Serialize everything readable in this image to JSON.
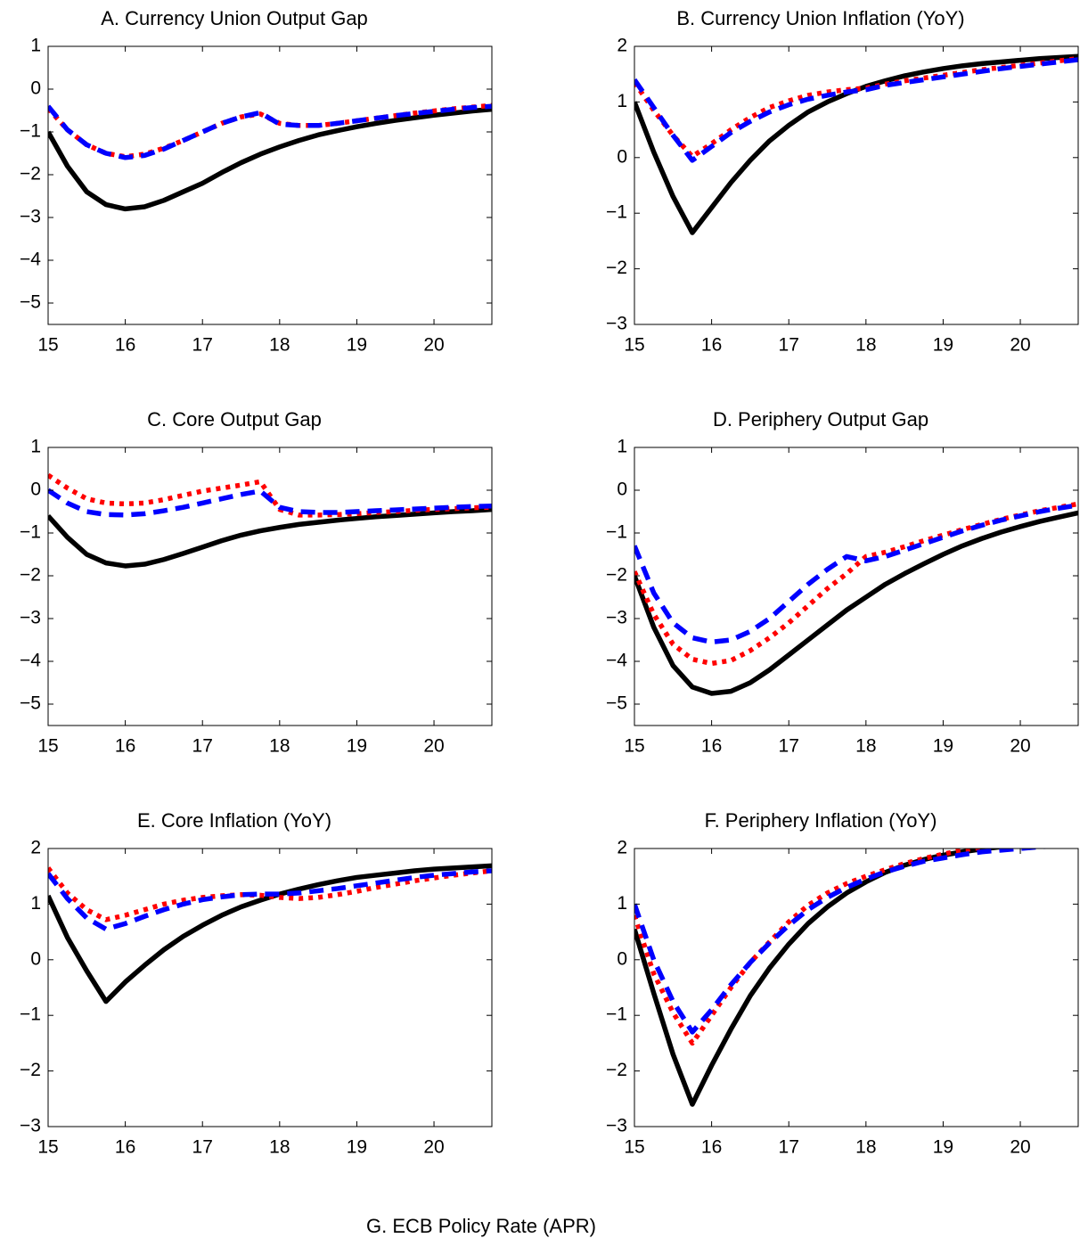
{
  "chart_data": [
    {
      "type": "line",
      "title": "A. Currency Union Output Gap",
      "x": [
        15,
        15.25,
        15.5,
        15.75,
        16,
        16.25,
        16.5,
        16.75,
        17,
        17.25,
        17.5,
        17.75,
        18,
        18.25,
        18.5,
        18.75,
        19,
        19.25,
        19.5,
        19.75,
        20,
        20.25,
        20.5,
        20.75
      ],
      "xlim": [
        15,
        20.75
      ],
      "xticks": [
        15,
        16,
        17,
        18,
        19,
        20
      ],
      "ylim": [
        -5.5,
        1
      ],
      "yticks": [
        {
          "value": -5,
          "label": "−5"
        },
        {
          "value": -4,
          "label": "−4"
        },
        {
          "value": -3,
          "label": "−3"
        },
        {
          "value": -2,
          "label": "−2"
        },
        {
          "value": -1,
          "label": "−1"
        },
        0,
        1
      ],
      "series": [
        {
          "color": "#000000",
          "style": "solid",
          "values": [
            -1.0,
            -1.8,
            -2.4,
            -2.7,
            -2.8,
            -2.75,
            -2.6,
            -2.4,
            -2.2,
            -1.95,
            -1.72,
            -1.52,
            -1.35,
            -1.2,
            -1.07,
            -0.97,
            -0.88,
            -0.8,
            -0.73,
            -0.67,
            -0.61,
            -0.56,
            -0.51,
            -0.47
          ]
        },
        {
          "color": "#ff0000",
          "style": "dotted",
          "values": [
            -0.45,
            -0.95,
            -1.3,
            -1.5,
            -1.58,
            -1.52,
            -1.38,
            -1.2,
            -1.0,
            -0.8,
            -0.65,
            -0.58,
            -0.8,
            -0.85,
            -0.85,
            -0.8,
            -0.74,
            -0.68,
            -0.62,
            -0.56,
            -0.51,
            -0.46,
            -0.42,
            -0.38
          ]
        },
        {
          "color": "#0000ff",
          "style": "dashed",
          "values": [
            -0.4,
            -0.95,
            -1.3,
            -1.5,
            -1.6,
            -1.55,
            -1.4,
            -1.2,
            -1.0,
            -0.8,
            -0.65,
            -0.55,
            -0.82,
            -0.85,
            -0.85,
            -0.8,
            -0.74,
            -0.68,
            -0.62,
            -0.57,
            -0.52,
            -0.47,
            -0.43,
            -0.4
          ]
        }
      ]
    },
    {
      "type": "line",
      "title": "B. Currency Union Inflation (YoY)",
      "x": [
        15,
        15.25,
        15.5,
        15.75,
        16,
        16.25,
        16.5,
        16.75,
        17,
        17.25,
        17.5,
        17.75,
        18,
        18.25,
        18.5,
        18.75,
        19,
        19.25,
        19.5,
        19.75,
        20,
        20.25,
        20.5,
        20.75
      ],
      "xlim": [
        15,
        20.75
      ],
      "xticks": [
        15,
        16,
        17,
        18,
        19,
        20
      ],
      "ylim": [
        -3,
        2
      ],
      "yticks": [
        {
          "value": -3,
          "label": "−3"
        },
        {
          "value": -2,
          "label": "−2"
        },
        {
          "value": -1,
          "label": "−1"
        },
        0,
        1,
        2
      ],
      "series": [
        {
          "color": "#000000",
          "style": "solid",
          "values": [
            1.0,
            0.1,
            -0.7,
            -1.35,
            -0.9,
            -0.45,
            -0.05,
            0.3,
            0.58,
            0.82,
            1.0,
            1.15,
            1.28,
            1.38,
            1.47,
            1.54,
            1.6,
            1.65,
            1.69,
            1.72,
            1.75,
            1.78,
            1.8,
            1.82
          ]
        },
        {
          "color": "#ff0000",
          "style": "dotted",
          "values": [
            1.35,
            0.85,
            0.4,
            0.02,
            0.25,
            0.5,
            0.72,
            0.9,
            1.02,
            1.12,
            1.18,
            1.22,
            1.25,
            1.32,
            1.38,
            1.43,
            1.48,
            1.53,
            1.58,
            1.62,
            1.66,
            1.7,
            1.74,
            1.78
          ]
        },
        {
          "color": "#0000ff",
          "style": "dashed",
          "values": [
            1.4,
            0.9,
            0.4,
            -0.05,
            0.2,
            0.45,
            0.65,
            0.82,
            0.95,
            1.05,
            1.12,
            1.18,
            1.22,
            1.3,
            1.35,
            1.4,
            1.45,
            1.5,
            1.55,
            1.6,
            1.64,
            1.68,
            1.72,
            1.76
          ]
        }
      ]
    },
    {
      "type": "line",
      "title": "C. Core Output Gap",
      "x": [
        15,
        15.25,
        15.5,
        15.75,
        16,
        16.25,
        16.5,
        16.75,
        17,
        17.25,
        17.5,
        17.75,
        18,
        18.25,
        18.5,
        18.75,
        19,
        19.25,
        19.5,
        19.75,
        20,
        20.25,
        20.5,
        20.75
      ],
      "xlim": [
        15,
        20.75
      ],
      "xticks": [
        15,
        16,
        17,
        18,
        19,
        20
      ],
      "ylim": [
        -5.5,
        1
      ],
      "yticks": [
        {
          "value": -5,
          "label": "−5"
        },
        {
          "value": -4,
          "label": "−4"
        },
        {
          "value": -3,
          "label": "−3"
        },
        {
          "value": -2,
          "label": "−2"
        },
        {
          "value": -1,
          "label": "−1"
        },
        0,
        1
      ],
      "series": [
        {
          "color": "#000000",
          "style": "solid",
          "values": [
            -0.6,
            -1.1,
            -1.5,
            -1.7,
            -1.77,
            -1.73,
            -1.62,
            -1.48,
            -1.33,
            -1.18,
            -1.05,
            -0.95,
            -0.87,
            -0.8,
            -0.75,
            -0.7,
            -0.66,
            -0.62,
            -0.59,
            -0.56,
            -0.53,
            -0.5,
            -0.48,
            -0.45
          ]
        },
        {
          "color": "#ff0000",
          "style": "dotted",
          "values": [
            0.35,
            0.05,
            -0.2,
            -0.3,
            -0.32,
            -0.3,
            -0.22,
            -0.12,
            -0.02,
            0.05,
            0.12,
            0.2,
            -0.45,
            -0.58,
            -0.58,
            -0.57,
            -0.55,
            -0.52,
            -0.5,
            -0.47,
            -0.45,
            -0.43,
            -0.41,
            -0.4
          ]
        },
        {
          "color": "#0000ff",
          "style": "dashed",
          "values": [
            0.0,
            -0.3,
            -0.5,
            -0.57,
            -0.58,
            -0.55,
            -0.48,
            -0.4,
            -0.3,
            -0.2,
            -0.1,
            -0.02,
            -0.4,
            -0.5,
            -0.52,
            -0.52,
            -0.5,
            -0.48,
            -0.46,
            -0.44,
            -0.42,
            -0.4,
            -0.38,
            -0.37
          ]
        }
      ]
    },
    {
      "type": "line",
      "title": "D. Periphery Output Gap",
      "x": [
        15,
        15.25,
        15.5,
        15.75,
        16,
        16.25,
        16.5,
        16.75,
        17,
        17.25,
        17.5,
        17.75,
        18,
        18.25,
        18.5,
        18.75,
        19,
        19.25,
        19.5,
        19.75,
        20,
        20.25,
        20.5,
        20.75
      ],
      "xlim": [
        15,
        20.75
      ],
      "xticks": [
        15,
        16,
        17,
        18,
        19,
        20
      ],
      "ylim": [
        -5.5,
        1
      ],
      "yticks": [
        {
          "value": -5,
          "label": "−5"
        },
        {
          "value": -4,
          "label": "−4"
        },
        {
          "value": -3,
          "label": "−3"
        },
        {
          "value": -2,
          "label": "−2"
        },
        {
          "value": -1,
          "label": "−1"
        },
        0,
        1
      ],
      "series": [
        {
          "color": "#000000",
          "style": "solid",
          "values": [
            -2.0,
            -3.2,
            -4.1,
            -4.6,
            -4.75,
            -4.7,
            -4.5,
            -4.2,
            -3.85,
            -3.5,
            -3.15,
            -2.8,
            -2.5,
            -2.2,
            -1.95,
            -1.72,
            -1.5,
            -1.3,
            -1.13,
            -0.98,
            -0.85,
            -0.73,
            -0.63,
            -0.53
          ]
        },
        {
          "color": "#ff0000",
          "style": "dotted",
          "values": [
            -1.9,
            -2.9,
            -3.6,
            -3.95,
            -4.05,
            -3.98,
            -3.75,
            -3.45,
            -3.1,
            -2.7,
            -2.3,
            -1.95,
            -1.55,
            -1.45,
            -1.32,
            -1.18,
            -1.05,
            -0.92,
            -0.8,
            -0.68,
            -0.58,
            -0.48,
            -0.4,
            -0.32
          ]
        },
        {
          "color": "#0000ff",
          "style": "dashed",
          "values": [
            -1.3,
            -2.4,
            -3.1,
            -3.45,
            -3.55,
            -3.5,
            -3.3,
            -3.0,
            -2.6,
            -2.2,
            -1.85,
            -1.55,
            -1.65,
            -1.55,
            -1.4,
            -1.25,
            -1.1,
            -0.95,
            -0.82,
            -0.7,
            -0.6,
            -0.5,
            -0.42,
            -0.35
          ]
        }
      ]
    },
    {
      "type": "line",
      "title": "E. Core Inflation (YoY)",
      "x": [
        15,
        15.25,
        15.5,
        15.75,
        16,
        16.25,
        16.5,
        16.75,
        17,
        17.25,
        17.5,
        17.75,
        18,
        18.25,
        18.5,
        18.75,
        19,
        19.25,
        19.5,
        19.75,
        20,
        20.25,
        20.5,
        20.75
      ],
      "xlim": [
        15,
        20.75
      ],
      "xticks": [
        15,
        16,
        17,
        18,
        19,
        20
      ],
      "ylim": [
        -3,
        2
      ],
      "yticks": [
        {
          "value": -3,
          "label": "−3"
        },
        {
          "value": -2,
          "label": "−2"
        },
        {
          "value": -1,
          "label": "−1"
        },
        0,
        1,
        2
      ],
      "series": [
        {
          "color": "#000000",
          "style": "solid",
          "values": [
            1.15,
            0.4,
            -0.2,
            -0.75,
            -0.4,
            -0.1,
            0.18,
            0.42,
            0.62,
            0.8,
            0.95,
            1.07,
            1.18,
            1.27,
            1.35,
            1.42,
            1.48,
            1.52,
            1.56,
            1.6,
            1.63,
            1.65,
            1.67,
            1.69
          ]
        },
        {
          "color": "#ff0000",
          "style": "dotted",
          "values": [
            1.65,
            1.2,
            0.9,
            0.72,
            0.8,
            0.9,
            1.0,
            1.07,
            1.12,
            1.15,
            1.17,
            1.16,
            1.12,
            1.1,
            1.12,
            1.17,
            1.23,
            1.3,
            1.36,
            1.42,
            1.47,
            1.52,
            1.56,
            1.6
          ]
        },
        {
          "color": "#0000ff",
          "style": "dashed",
          "values": [
            1.55,
            1.1,
            0.75,
            0.55,
            0.65,
            0.78,
            0.9,
            1.0,
            1.08,
            1.13,
            1.17,
            1.18,
            1.18,
            1.2,
            1.24,
            1.28,
            1.33,
            1.38,
            1.43,
            1.48,
            1.52,
            1.55,
            1.58,
            1.6
          ]
        }
      ]
    },
    {
      "type": "line",
      "title": "F. Periphery Inflation (YoY)",
      "x": [
        15,
        15.25,
        15.5,
        15.75,
        16,
        16.25,
        16.5,
        16.75,
        17,
        17.25,
        17.5,
        17.75,
        18,
        18.25,
        18.5,
        18.75,
        19,
        19.25,
        19.5,
        19.75,
        20,
        20.25,
        20.5,
        20.75
      ],
      "xlim": [
        15,
        20.75
      ],
      "xticks": [
        15,
        16,
        17,
        18,
        19,
        20
      ],
      "ylim": [
        -3,
        2
      ],
      "yticks": [
        {
          "value": -3,
          "label": "−3"
        },
        {
          "value": -2,
          "label": "−2"
        },
        {
          "value": -1,
          "label": "−1"
        },
        0,
        1,
        2
      ],
      "series": [
        {
          "color": "#000000",
          "style": "solid",
          "values": [
            0.55,
            -0.6,
            -1.7,
            -2.6,
            -1.9,
            -1.25,
            -0.65,
            -0.15,
            0.28,
            0.65,
            0.95,
            1.2,
            1.4,
            1.57,
            1.7,
            1.8,
            1.88,
            1.94,
            1.99,
            2.03,
            2.06,
            2.09,
            2.11,
            2.13
          ]
        },
        {
          "color": "#ff0000",
          "style": "dotted",
          "values": [
            0.8,
            -0.25,
            -0.95,
            -1.5,
            -1.0,
            -0.5,
            -0.05,
            0.32,
            0.68,
            0.98,
            1.2,
            1.37,
            1.5,
            1.62,
            1.73,
            1.82,
            1.9,
            1.97,
            2.02,
            2.06,
            2.09,
            2.12,
            2.14,
            2.16
          ]
        },
        {
          "color": "#0000ff",
          "style": "dashed",
          "values": [
            1.0,
            0.0,
            -0.75,
            -1.3,
            -0.9,
            -0.45,
            -0.05,
            0.3,
            0.62,
            0.9,
            1.12,
            1.3,
            1.45,
            1.58,
            1.68,
            1.77,
            1.83,
            1.89,
            1.94,
            1.97,
            2.0,
            2.03,
            2.05,
            2.07
          ]
        }
      ]
    },
    {
      "type": "line",
      "title": "G. ECB Policy Rate (APR)"
    }
  ]
}
